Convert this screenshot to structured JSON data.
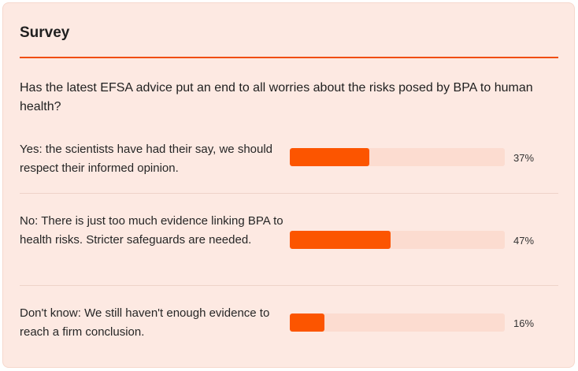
{
  "survey": {
    "title": "Survey",
    "question": "Has the latest EFSA advice put an end to all worries about the risks posed by BPA to human health?",
    "accent_color": "#fc5500",
    "options": [
      {
        "label": "Yes: the scientists have had their say, we should respect their informed opinion.",
        "percent_label": "37%",
        "fraction": 0.37
      },
      {
        "label": "No: There is just too much evidence linking BPA to health risks. Stricter safeguards are needed.",
        "percent_label": "47%",
        "fraction": 0.47
      },
      {
        "label": "Don't know: We still haven't enough evidence to reach a firm conclusion.",
        "percent_label": "16%",
        "fraction": 0.16
      }
    ]
  }
}
